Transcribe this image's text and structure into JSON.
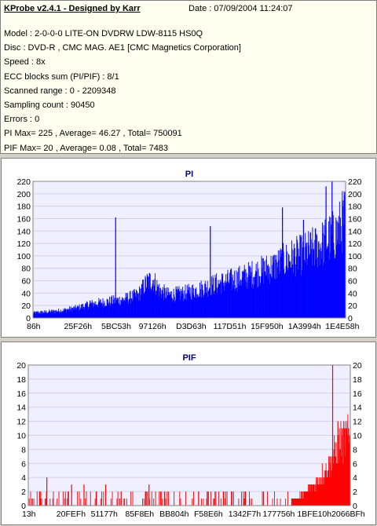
{
  "header": {
    "title": "KProbe v2.4.1 - Designed by Karr",
    "date": "Date : 07/09/2004 11:24:07"
  },
  "info_lines": [
    "Model : 2-0-0-0 LITE-ON DVDRW LDW-8115   HS0Q",
    "Disc : DVD-R , CMC MAG. AE1 [CMC Magnetics Corporation]",
    "Speed : 8x",
    "ECC blocks sum (PI/PIF) : 8/1",
    "Scanned range : 0 - 2209348",
    "Sampling count : 90450",
    "Errors : 0",
    "PI Max= 225 , Average= 46.27 , Total= 750091",
    "PIF Max= 20 , Average= 0.08 , Total= 7483"
  ],
  "colors": {
    "info_bg": "#fffff0",
    "plot_bg": "#efefff",
    "pi_series": "#0000ff",
    "pif_series": "#ff0000",
    "grid": "#d0d0f0",
    "title": "#00007f"
  },
  "chart_data": [
    {
      "type": "area",
      "title": "PI",
      "ylim": [
        0,
        220
      ],
      "yticks": [
        0,
        20,
        40,
        60,
        80,
        100,
        120,
        140,
        160,
        180,
        200,
        220
      ],
      "xtick_labels": [
        "86h",
        "25F26h",
        "5BC53h",
        "97126h",
        "D3D63h",
        "117D51h",
        "15F950h",
        "1A3994h",
        "1E4E58h"
      ],
      "grid": true,
      "series": [
        {
          "envelope": [
            [
              0,
              10
            ],
            [
              5,
              12
            ],
            [
              10,
              15
            ],
            [
              15,
              20
            ],
            [
              20,
              28
            ],
            [
              25,
              32
            ],
            [
              30,
              36
            ],
            [
              35,
              45
            ],
            [
              38,
              70
            ],
            [
              40,
              75
            ],
            [
              42,
              55
            ],
            [
              45,
              45
            ],
            [
              50,
              48
            ],
            [
              55,
              55
            ],
            [
              60,
              65
            ],
            [
              65,
              72
            ],
            [
              70,
              80
            ],
            [
              75,
              90
            ],
            [
              80,
              100
            ],
            [
              85,
              115
            ],
            [
              90,
              125
            ],
            [
              95,
              140
            ],
            [
              100,
              160
            ],
            [
              101,
              165
            ],
            [
              102,
              175
            ],
            [
              103,
              190
            ],
            [
              104,
              198
            ]
          ],
          "spikes": [
            [
              19,
              28
            ],
            [
              27.5,
              162
            ],
            [
              59,
              148
            ],
            [
              83,
              178
            ],
            [
              90,
              158
            ],
            [
              97.5,
              212
            ],
            [
              99.5,
              225
            ]
          ]
        }
      ]
    },
    {
      "type": "bar",
      "title": "PIF",
      "ylim": [
        0,
        20
      ],
      "yticks": [
        0,
        2,
        4,
        6,
        8,
        10,
        12,
        14,
        16,
        18,
        20
      ],
      "xtick_labels": [
        "13h",
        "20FEFh",
        "51177h",
        "85F8Eh",
        "BB804h",
        "F58E6h",
        "1342F7h",
        "177756h",
        "1BFE10h",
        "2066BFh"
      ],
      "grid": true,
      "series": [
        {
          "envelope": [
            [
              0,
              1
            ],
            [
              85,
              1
            ],
            [
              88,
              1.5
            ],
            [
              90,
              2.5
            ],
            [
              93,
              4
            ],
            [
              96,
              6
            ],
            [
              99,
              9
            ],
            [
              101,
              11
            ],
            [
              103,
              12
            ],
            [
              104,
              12
            ]
          ],
          "spikes": [
            [
              6,
              4
            ],
            [
              14,
              3
            ],
            [
              18,
              3
            ],
            [
              25,
              3
            ],
            [
              30,
              2
            ],
            [
              39,
              3
            ],
            [
              44,
              2
            ],
            [
              55,
              2
            ],
            [
              63,
              2
            ],
            [
              70,
              2
            ],
            [
              76,
              2
            ],
            [
              98.3,
              20
            ],
            [
              100,
              12
            ]
          ]
        }
      ]
    }
  ]
}
